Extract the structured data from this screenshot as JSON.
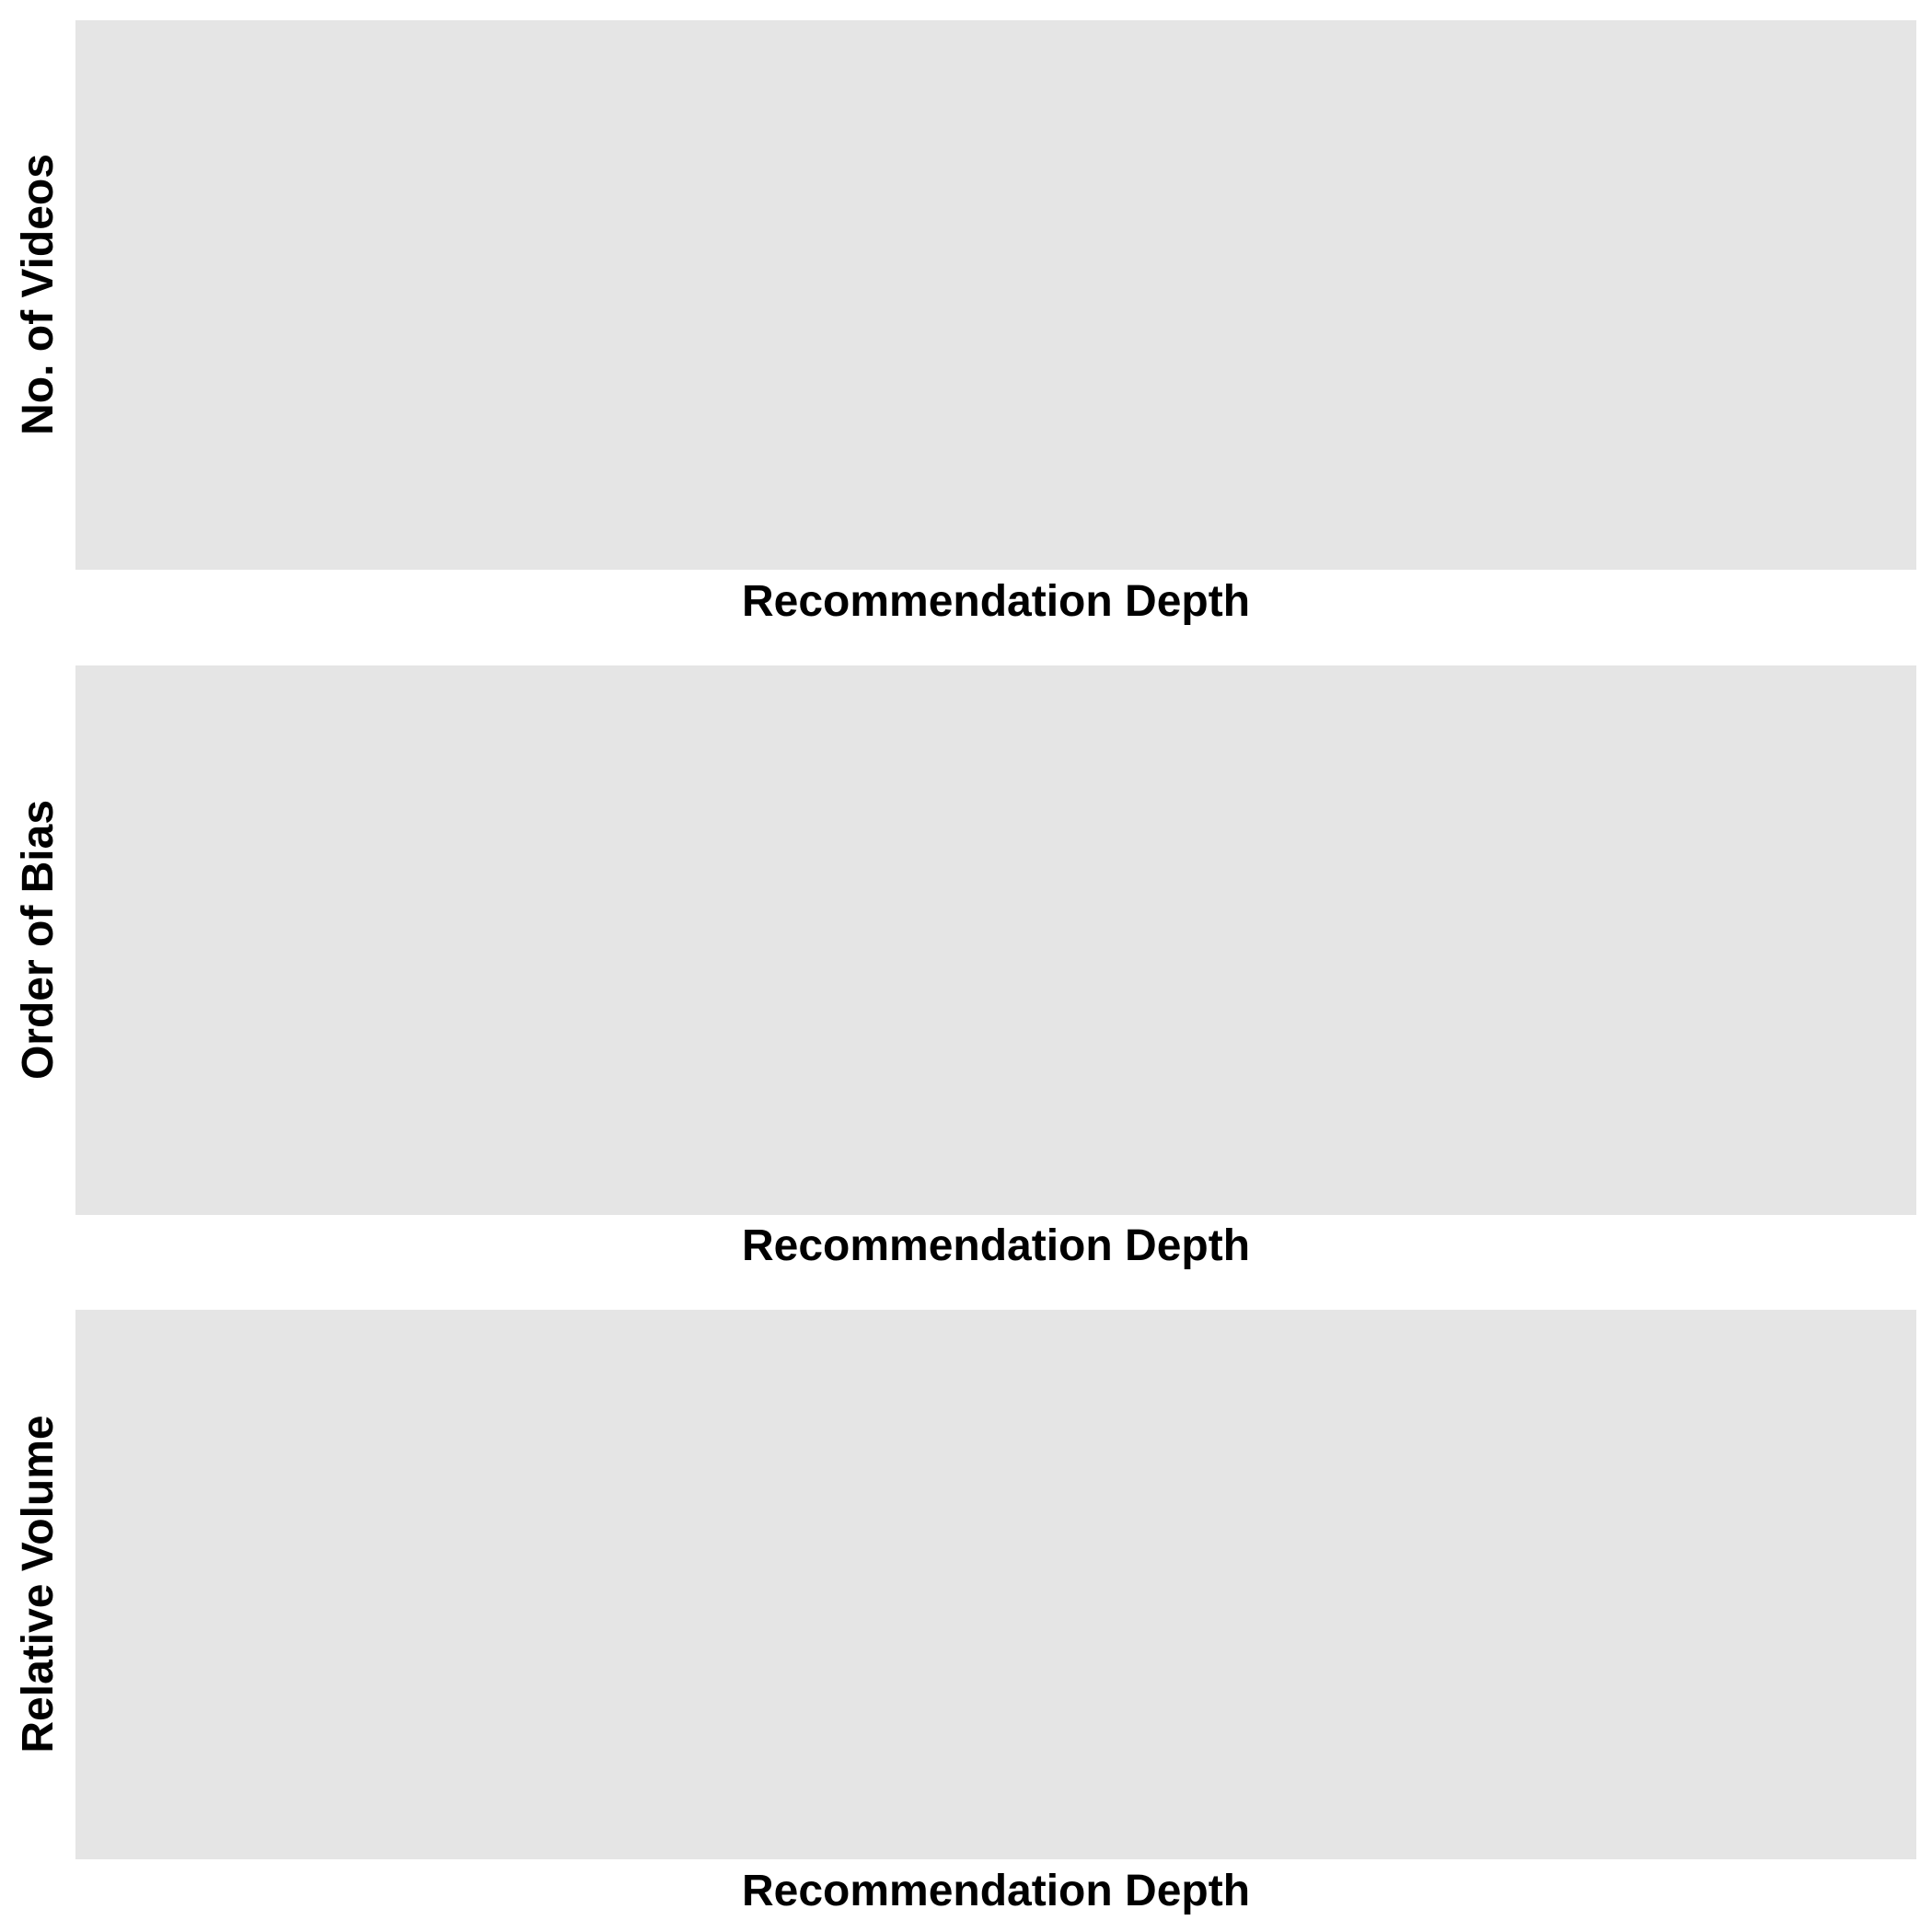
{
  "chart_data": [
    {
      "type": "line",
      "title": "",
      "xlabel": "Recommendation Depth",
      "ylabel": "No. of Videos",
      "series": [],
      "grid": false
    },
    {
      "type": "line",
      "title": "",
      "xlabel": "Recommendation Depth",
      "ylabel": "Order of Bias",
      "series": [],
      "grid": false
    },
    {
      "type": "line",
      "title": "",
      "xlabel": "Recommendation Depth",
      "ylabel": "Relative Volume",
      "series": [],
      "grid": false
    }
  ],
  "colors": {
    "panel_background": "#e5e5e5",
    "page_background": "#ffffff",
    "text": "#000000"
  }
}
